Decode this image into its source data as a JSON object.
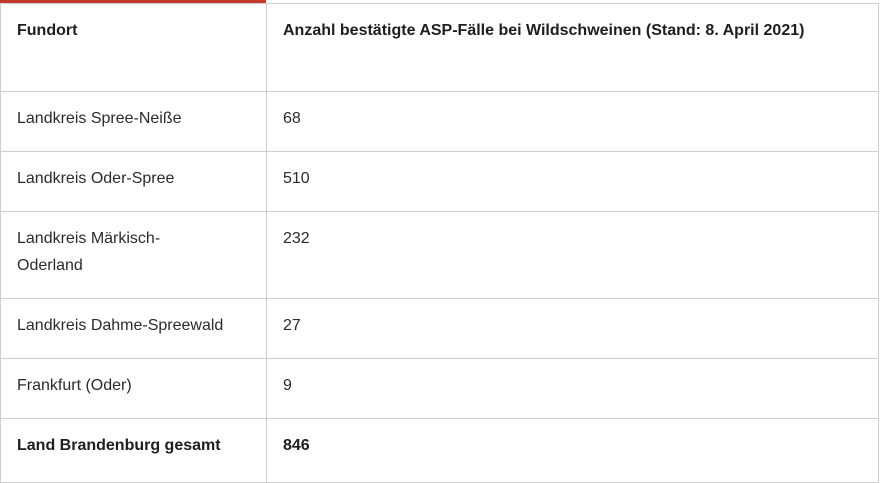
{
  "table": {
    "headers": {
      "location": "Fundort",
      "cases": "Anzahl bestätigte ASP-Fälle bei Wildschweinen (Stand: 8. April 2021)"
    },
    "rows": [
      {
        "location": "Landkreis Spree-Neiße",
        "cases": "68"
      },
      {
        "location": "Landkreis Oder-Spree",
        "cases": "510"
      },
      {
        "location": "Landkreis Märkisch-Oderland",
        "cases": "232"
      },
      {
        "location": "Landkreis Dahme-Spreewald",
        "cases": "27"
      },
      {
        "location": "Frankfurt (Oder)",
        "cases": "9"
      }
    ],
    "total": {
      "location": "Land Brandenburg gesamt",
      "cases": "846"
    }
  },
  "colors": {
    "accent": "#c23a2b",
    "border": "#cfcfcf",
    "text": "#2b2b2b"
  }
}
